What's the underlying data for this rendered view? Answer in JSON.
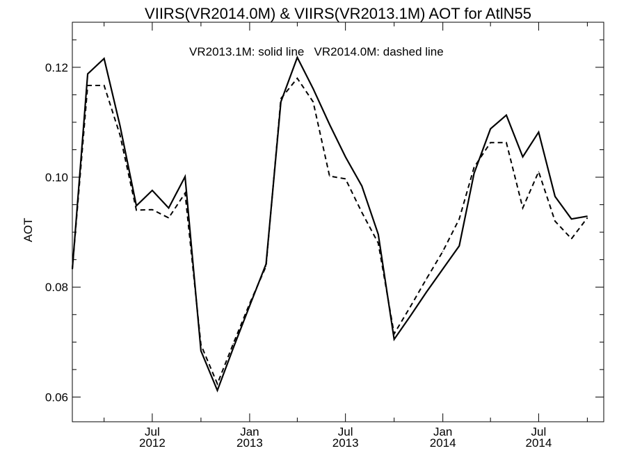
{
  "chart_data": {
    "type": "line",
    "title": "VIIRS(VR2014.0M) & VIIRS(VR2013.1M)  AOT for AtlN55",
    "annotation": "VR2013.1M: solid line   VR2014.0M: dashed line",
    "ylabel": "AOT",
    "xlabel": "",
    "ylim": [
      0.0555,
      0.1282
    ],
    "xlim": [
      "2012-02-01",
      "2014-11-01"
    ],
    "grid": false,
    "x_ticks": [
      {
        "date": "2012-07-01",
        "line1": "Jul",
        "line2": "2012"
      },
      {
        "date": "2013-01-01",
        "line1": "Jan",
        "line2": "2013"
      },
      {
        "date": "2013-07-01",
        "line1": "Jul",
        "line2": "2013"
      },
      {
        "date": "2014-01-01",
        "line1": "Jan",
        "line2": "2014"
      },
      {
        "date": "2014-07-01",
        "line1": "Jul",
        "line2": "2014"
      }
    ],
    "y_ticks": [
      {
        "value": 0.06,
        "label": "0.06"
      },
      {
        "value": 0.08,
        "label": "0.08"
      },
      {
        "value": 0.1,
        "label": "0.10"
      },
      {
        "value": 0.12,
        "label": "0.12"
      }
    ],
    "series": [
      {
        "style": "solid",
        "color": "#000000",
        "points": [
          {
            "x": "2012-02-01",
            "y": 0.0833
          },
          {
            "x": "2012-03-01",
            "y": 0.1188
          },
          {
            "x": "2012-04-01",
            "y": 0.1216
          },
          {
            "x": "2012-05-01",
            "y": 0.1094
          },
          {
            "x": "2012-06-01",
            "y": 0.0948
          },
          {
            "x": "2012-07-01",
            "y": 0.0976
          },
          {
            "x": "2012-08-01",
            "y": 0.0944
          },
          {
            "x": "2012-09-01",
            "y": 0.1001
          },
          {
            "x": "2012-10-01",
            "y": 0.0684
          },
          {
            "x": "2012-11-01",
            "y": 0.0612
          },
          {
            "x": "2012-12-01",
            "y": 0.0689
          },
          {
            "x": "2013-01-01",
            "y": 0.0766
          },
          {
            "x": "2013-02-01",
            "y": 0.0842
          },
          {
            "x": "2013-03-01",
            "y": 0.1137
          },
          {
            "x": "2013-04-01",
            "y": 0.1218
          },
          {
            "x": "2013-05-01",
            "y": 0.1161
          },
          {
            "x": "2013-06-01",
            "y": 0.1096
          },
          {
            "x": "2013-07-01",
            "y": 0.1037
          },
          {
            "x": "2013-08-01",
            "y": 0.0984
          },
          {
            "x": "2013-09-01",
            "y": 0.0896
          },
          {
            "x": "2013-10-01",
            "y": 0.0705
          },
          {
            "x": "2013-11-01",
            "y": 0.0748
          },
          {
            "x": "2013-12-01",
            "y": 0.0791
          },
          {
            "x": "2014-01-01",
            "y": 0.0833
          },
          {
            "x": "2014-02-01",
            "y": 0.0875
          },
          {
            "x": "2014-03-01",
            "y": 0.1007
          },
          {
            "x": "2014-04-01",
            "y": 0.1088
          },
          {
            "x": "2014-05-01",
            "y": 0.1113
          },
          {
            "x": "2014-06-01",
            "y": 0.1037
          },
          {
            "x": "2014-07-01",
            "y": 0.1082
          },
          {
            "x": "2014-08-01",
            "y": 0.0965
          },
          {
            "x": "2014-09-01",
            "y": 0.0924
          },
          {
            "x": "2014-10-01",
            "y": 0.0929
          }
        ]
      },
      {
        "style": "dashed",
        "color": "#000000",
        "points": [
          {
            "x": "2012-02-01",
            "y": 0.0833
          },
          {
            "x": "2012-03-01",
            "y": 0.1167
          },
          {
            "x": "2012-04-01",
            "y": 0.1167
          },
          {
            "x": "2012-05-01",
            "y": 0.1077
          },
          {
            "x": "2012-06-01",
            "y": 0.094
          },
          {
            "x": "2012-07-01",
            "y": 0.0941
          },
          {
            "x": "2012-08-01",
            "y": 0.0926
          },
          {
            "x": "2012-09-01",
            "y": 0.0971
          },
          {
            "x": "2012-10-01",
            "y": 0.0695
          },
          {
            "x": "2012-11-01",
            "y": 0.0624
          },
          {
            "x": "2012-12-01",
            "y": 0.0697
          },
          {
            "x": "2013-01-01",
            "y": 0.077
          },
          {
            "x": "2013-02-01",
            "y": 0.0838
          },
          {
            "x": "2013-03-01",
            "y": 0.1143
          },
          {
            "x": "2013-04-01",
            "y": 0.118
          },
          {
            "x": "2013-05-01",
            "y": 0.1137
          },
          {
            "x": "2013-06-01",
            "y": 0.1002
          },
          {
            "x": "2013-07-01",
            "y": 0.0997
          },
          {
            "x": "2013-08-01",
            "y": 0.0936
          },
          {
            "x": "2013-09-01",
            "y": 0.088
          },
          {
            "x": "2013-10-01",
            "y": 0.0715
          },
          {
            "x": "2013-11-01",
            "y": 0.0765
          },
          {
            "x": "2013-12-01",
            "y": 0.0815
          },
          {
            "x": "2014-01-01",
            "y": 0.0865
          },
          {
            "x": "2014-02-01",
            "y": 0.0924
          },
          {
            "x": "2014-03-01",
            "y": 0.1018
          },
          {
            "x": "2014-04-01",
            "y": 0.1063
          },
          {
            "x": "2014-05-01",
            "y": 0.1063
          },
          {
            "x": "2014-06-01",
            "y": 0.0944
          },
          {
            "x": "2014-07-01",
            "y": 0.101
          },
          {
            "x": "2014-08-01",
            "y": 0.092
          },
          {
            "x": "2014-09-01",
            "y": 0.0888
          },
          {
            "x": "2014-10-01",
            "y": 0.0926
          }
        ]
      }
    ]
  }
}
